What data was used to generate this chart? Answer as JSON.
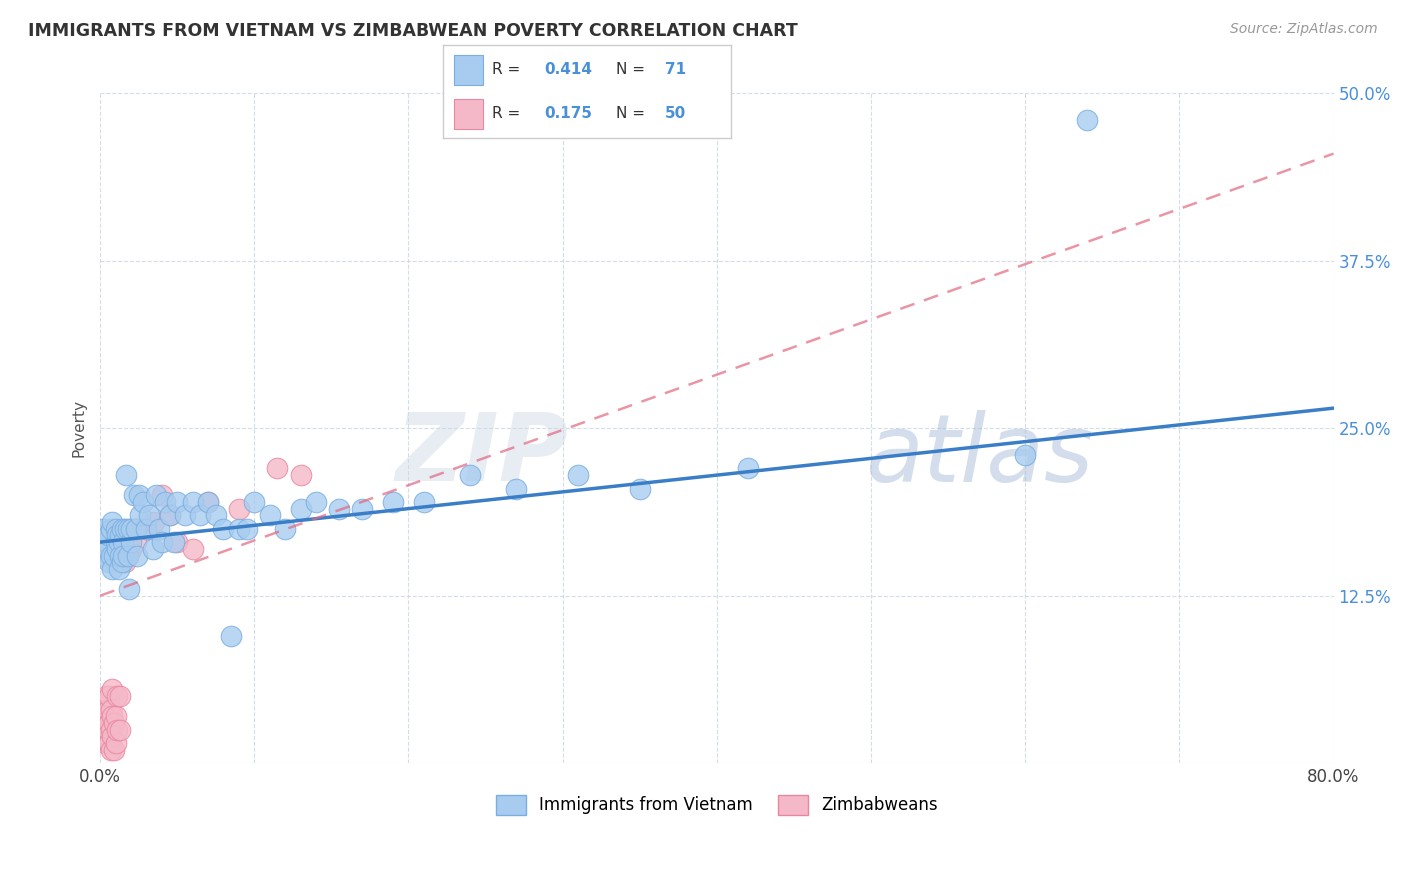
{
  "title": "IMMIGRANTS FROM VIETNAM VS ZIMBABWEAN POVERTY CORRELATION CHART",
  "source": "Source: ZipAtlas.com",
  "ylabel": "Poverty",
  "watermark_zip": "ZIP",
  "watermark_atlas": "atlas",
  "legend_label1": "Immigrants from Vietnam",
  "legend_label2": "Zimbabweans",
  "r1": "0.414",
  "n1": "71",
  "r2": "0.175",
  "n2": "50",
  "xlim": [
    0.0,
    0.8
  ],
  "ylim": [
    0.0,
    0.5
  ],
  "color_blue": "#a8ccef",
  "color_pink": "#f5b8c8",
  "line_blue": "#3a7ec8",
  "line_pink": "#e06880",
  "background_color": "#ffffff",
  "grid_color": "#d0d8e8",
  "title_color": "#333333",
  "axis_label_color": "#4a90d9",
  "vietnam_x": [
    0.002,
    0.003,
    0.004,
    0.005,
    0.005,
    0.006,
    0.007,
    0.007,
    0.008,
    0.008,
    0.009,
    0.01,
    0.01,
    0.011,
    0.011,
    0.012,
    0.012,
    0.013,
    0.013,
    0.014,
    0.014,
    0.015,
    0.015,
    0.016,
    0.017,
    0.018,
    0.018,
    0.019,
    0.02,
    0.02,
    0.022,
    0.023,
    0.024,
    0.025,
    0.026,
    0.028,
    0.03,
    0.032,
    0.034,
    0.036,
    0.038,
    0.04,
    0.042,
    0.045,
    0.048,
    0.05,
    0.055,
    0.06,
    0.065,
    0.07,
    0.075,
    0.08,
    0.085,
    0.09,
    0.095,
    0.1,
    0.11,
    0.12,
    0.13,
    0.14,
    0.155,
    0.17,
    0.19,
    0.21,
    0.24,
    0.27,
    0.31,
    0.35,
    0.42,
    0.6,
    0.64
  ],
  "vietnam_y": [
    0.175,
    0.155,
    0.165,
    0.16,
    0.17,
    0.15,
    0.155,
    0.175,
    0.145,
    0.18,
    0.155,
    0.165,
    0.175,
    0.16,
    0.17,
    0.145,
    0.165,
    0.155,
    0.17,
    0.15,
    0.175,
    0.165,
    0.155,
    0.175,
    0.215,
    0.155,
    0.175,
    0.13,
    0.165,
    0.175,
    0.2,
    0.175,
    0.155,
    0.2,
    0.185,
    0.195,
    0.175,
    0.185,
    0.16,
    0.2,
    0.175,
    0.165,
    0.195,
    0.185,
    0.165,
    0.195,
    0.185,
    0.195,
    0.185,
    0.195,
    0.185,
    0.175,
    0.095,
    0.175,
    0.175,
    0.195,
    0.185,
    0.175,
    0.19,
    0.195,
    0.19,
    0.19,
    0.195,
    0.195,
    0.215,
    0.205,
    0.215,
    0.205,
    0.22,
    0.23,
    0.48
  ],
  "zimb_x": [
    0.001,
    0.001,
    0.002,
    0.002,
    0.003,
    0.003,
    0.003,
    0.004,
    0.004,
    0.004,
    0.005,
    0.005,
    0.005,
    0.006,
    0.006,
    0.006,
    0.007,
    0.007,
    0.007,
    0.008,
    0.008,
    0.008,
    0.009,
    0.009,
    0.01,
    0.01,
    0.011,
    0.011,
    0.012,
    0.013,
    0.013,
    0.014,
    0.015,
    0.016,
    0.017,
    0.018,
    0.02,
    0.022,
    0.023,
    0.025,
    0.03,
    0.035,
    0.04,
    0.045,
    0.05,
    0.06,
    0.07,
    0.09,
    0.115,
    0.13
  ],
  "zimb_y": [
    0.02,
    0.035,
    0.025,
    0.04,
    0.015,
    0.03,
    0.045,
    0.02,
    0.035,
    0.05,
    0.015,
    0.025,
    0.04,
    0.015,
    0.03,
    0.05,
    0.01,
    0.025,
    0.04,
    0.02,
    0.035,
    0.055,
    0.01,
    0.03,
    0.015,
    0.035,
    0.025,
    0.05,
    0.165,
    0.025,
    0.05,
    0.155,
    0.155,
    0.15,
    0.155,
    0.155,
    0.16,
    0.175,
    0.165,
    0.175,
    0.175,
    0.18,
    0.2,
    0.185,
    0.165,
    0.16,
    0.195,
    0.19,
    0.22,
    0.215
  ],
  "trendline_blue_x0": 0.0,
  "trendline_blue_y0": 0.165,
  "trendline_blue_x1": 0.8,
  "trendline_blue_y1": 0.265,
  "trendline_pink_x0": 0.0,
  "trendline_pink_y0": 0.125,
  "trendline_pink_x1": 0.8,
  "trendline_pink_y1": 0.455
}
